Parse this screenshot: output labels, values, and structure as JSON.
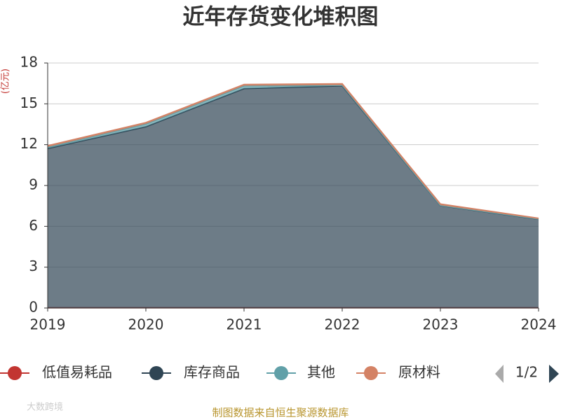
{
  "chart_data": {
    "type": "stacked_area",
    "title": "近年存货变化堆积图",
    "y_unit": "(亿元)",
    "categories": [
      "2019",
      "2020",
      "2021",
      "2022",
      "2023",
      "2024"
    ],
    "series": [
      {
        "name": "低值易耗品",
        "color": "#c23531",
        "values": [
          0.02,
          0.02,
          0.02,
          0.02,
          0.02,
          0.02
        ]
      },
      {
        "name": "库存商品",
        "color": "#2f4554",
        "values": [
          11.7,
          13.3,
          16.1,
          16.3,
          7.5,
          6.5
        ]
      },
      {
        "name": "其他",
        "color": "#61a0a8",
        "values": [
          0.1,
          0.2,
          0.2,
          0.05,
          0.02,
          0.02
        ]
      },
      {
        "name": "原材料",
        "color": "#d48265",
        "values": [
          0.1,
          0.1,
          0.1,
          0.1,
          0.1,
          0.05
        ]
      }
    ],
    "ylim": [
      0,
      18
    ],
    "yticks": [
      0,
      3,
      6,
      9,
      12,
      15,
      18
    ],
    "grid": true,
    "legend_page": "1/2",
    "source": "制图数据来自恒生聚源数据库",
    "watermark": "大数跨境"
  }
}
